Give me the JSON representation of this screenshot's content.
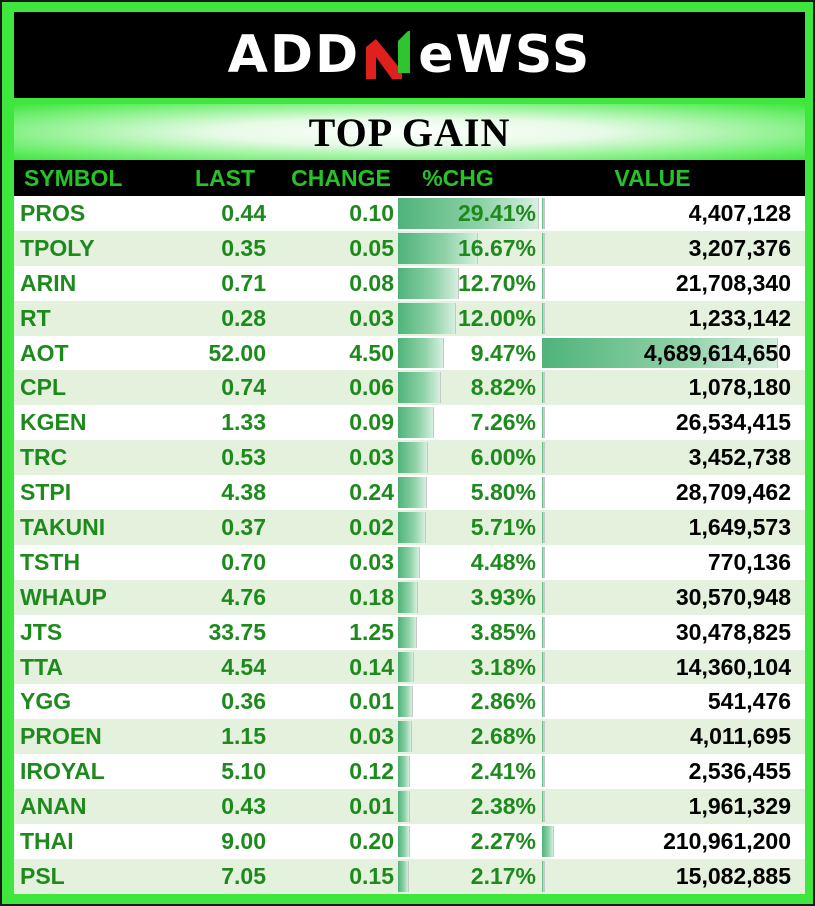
{
  "brand": {
    "logo_left": "ADD",
    "logo_right": "eWSS"
  },
  "title": "TOP GAIN",
  "colors": {
    "background": "#3ee63e",
    "header_text": "#27c227",
    "value_green": "#1e8a1e",
    "bar": "#4fb37a",
    "row_alt": "#e4f1dc"
  },
  "columns": {
    "symbol": "SYMBOL",
    "last": "LAST",
    "change": "CHANGE",
    "pct": "%CHG",
    "value": "VALUE"
  },
  "rows": [
    {
      "symbol": "PROS",
      "last": "0.44",
      "change": "0.10",
      "pct": "29.41%",
      "value": "4,407,128",
      "pct_num": 29.41,
      "value_num": 4407128
    },
    {
      "symbol": "TPOLY",
      "last": "0.35",
      "change": "0.05",
      "pct": "16.67%",
      "value": "3,207,376",
      "pct_num": 16.67,
      "value_num": 3207376
    },
    {
      "symbol": "ARIN",
      "last": "0.71",
      "change": "0.08",
      "pct": "12.70%",
      "value": "21,708,340",
      "pct_num": 12.7,
      "value_num": 21708340
    },
    {
      "symbol": "RT",
      "last": "0.28",
      "change": "0.03",
      "pct": "12.00%",
      "value": "1,233,142",
      "pct_num": 12.0,
      "value_num": 1233142
    },
    {
      "symbol": "AOT",
      "last": "52.00",
      "change": "4.50",
      "pct": "9.47%",
      "value": "4,689,614,650",
      "pct_num": 9.47,
      "value_num": 4689614650
    },
    {
      "symbol": "CPL",
      "last": "0.74",
      "change": "0.06",
      "pct": "8.82%",
      "value": "1,078,180",
      "pct_num": 8.82,
      "value_num": 1078180
    },
    {
      "symbol": "KGEN",
      "last": "1.33",
      "change": "0.09",
      "pct": "7.26%",
      "value": "26,534,415",
      "pct_num": 7.26,
      "value_num": 26534415
    },
    {
      "symbol": "TRC",
      "last": "0.53",
      "change": "0.03",
      "pct": "6.00%",
      "value": "3,452,738",
      "pct_num": 6.0,
      "value_num": 3452738
    },
    {
      "symbol": "STPI",
      "last": "4.38",
      "change": "0.24",
      "pct": "5.80%",
      "value": "28,709,462",
      "pct_num": 5.8,
      "value_num": 28709462
    },
    {
      "symbol": "TAKUNI",
      "last": "0.37",
      "change": "0.02",
      "pct": "5.71%",
      "value": "1,649,573",
      "pct_num": 5.71,
      "value_num": 1649573
    },
    {
      "symbol": "TSTH",
      "last": "0.70",
      "change": "0.03",
      "pct": "4.48%",
      "value": "770,136",
      "pct_num": 4.48,
      "value_num": 770136
    },
    {
      "symbol": "WHAUP",
      "last": "4.76",
      "change": "0.18",
      "pct": "3.93%",
      "value": "30,570,948",
      "pct_num": 3.93,
      "value_num": 30570948
    },
    {
      "symbol": "JTS",
      "last": "33.75",
      "change": "1.25",
      "pct": "3.85%",
      "value": "30,478,825",
      "pct_num": 3.85,
      "value_num": 30478825
    },
    {
      "symbol": "TTA",
      "last": "4.54",
      "change": "0.14",
      "pct": "3.18%",
      "value": "14,360,104",
      "pct_num": 3.18,
      "value_num": 14360104
    },
    {
      "symbol": "YGG",
      "last": "0.36",
      "change": "0.01",
      "pct": "2.86%",
      "value": "541,476",
      "pct_num": 2.86,
      "value_num": 541476
    },
    {
      "symbol": "PROEN",
      "last": "1.15",
      "change": "0.03",
      "pct": "2.68%",
      "value": "4,011,695",
      "pct_num": 2.68,
      "value_num": 4011695
    },
    {
      "symbol": "IROYAL",
      "last": "5.10",
      "change": "0.12",
      "pct": "2.41%",
      "value": "2,536,455",
      "pct_num": 2.41,
      "value_num": 2536455
    },
    {
      "symbol": "ANAN",
      "last": "0.43",
      "change": "0.01",
      "pct": "2.38%",
      "value": "1,961,329",
      "pct_num": 2.38,
      "value_num": 1961329
    },
    {
      "symbol": "THAI",
      "last": "9.00",
      "change": "0.20",
      "pct": "2.27%",
      "value": "210,961,200",
      "pct_num": 2.27,
      "value_num": 210961200
    },
    {
      "symbol": "PSL",
      "last": "7.05",
      "change": "0.15",
      "pct": "2.17%",
      "value": "15,082,885",
      "pct_num": 2.17,
      "value_num": 15082885
    }
  ]
}
